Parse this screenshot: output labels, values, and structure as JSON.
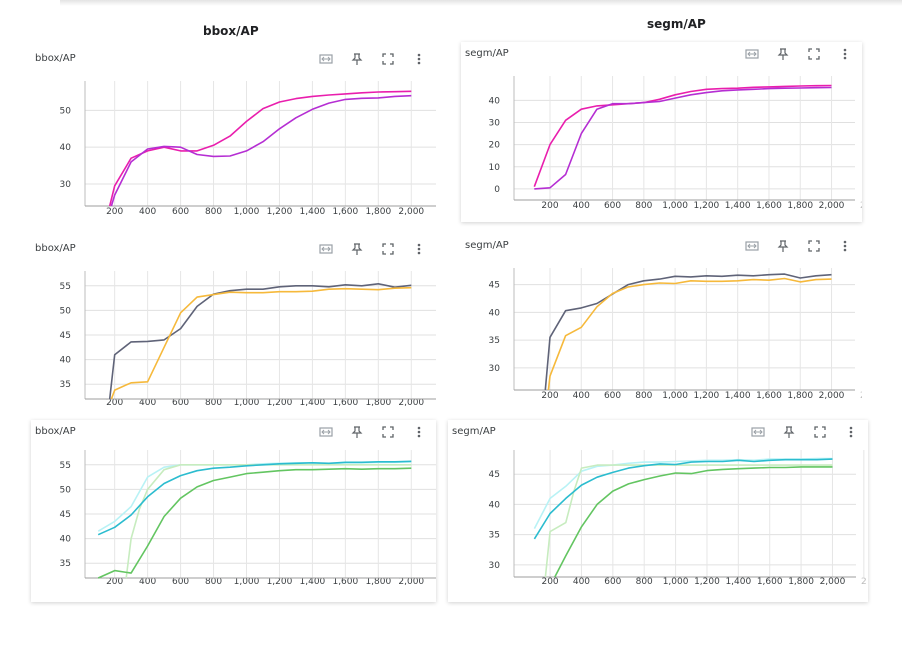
{
  "headings": {
    "left": "bbox/AP",
    "right": "segm/AP"
  },
  "toolbar_icons": [
    "fit-domain-icon",
    "pin-icon",
    "fullscreen-icon",
    "more-vert-icon"
  ],
  "chart_data": [
    {
      "type": "line",
      "title": "bbox/AP",
      "grid": true,
      "x_ticks": [
        "200",
        "400",
        "600",
        "800",
        "1,000",
        "1,200",
        "1,400",
        "1,600",
        "1,800",
        "2,000",
        "2"
      ],
      "y_ticks": [
        30,
        40,
        50
      ],
      "ylim": [
        24,
        58
      ],
      "xlim": [
        20,
        2150
      ],
      "series": [
        {
          "color": "#e91ead",
          "x": [
            170,
            200,
            300,
            400,
            500,
            600,
            700,
            800,
            900,
            1000,
            1100,
            1200,
            1300,
            1400,
            1500,
            1600,
            1700,
            1800,
            1900,
            2000
          ],
          "y": [
            24,
            29.5,
            37,
            39,
            40,
            39,
            39,
            40.5,
            43,
            47,
            50.5,
            52.3,
            53.2,
            53.8,
            54.2,
            54.5,
            54.8,
            55,
            55.1,
            55.2
          ]
        },
        {
          "color": "#b52ed3",
          "x": [
            180,
            200,
            300,
            400,
            500,
            600,
            700,
            800,
            900,
            1000,
            1100,
            1200,
            1300,
            1400,
            1500,
            1600,
            1700,
            1800,
            1900,
            2000
          ],
          "y": [
            24,
            27,
            36,
            39.5,
            40.2,
            40,
            38,
            37.5,
            37.6,
            39,
            41.5,
            45,
            48,
            50.3,
            52,
            53,
            53.3,
            53.4,
            53.8,
            54
          ]
        }
      ]
    },
    {
      "type": "line",
      "title": "segm/AP",
      "grid": true,
      "x_ticks": [
        "200",
        "400",
        "600",
        "800",
        "1,000",
        "1,200",
        "1,400",
        "1,600",
        "1,800",
        "2,000",
        "2"
      ],
      "y_ticks": [
        0,
        10,
        20,
        30,
        40
      ],
      "ylim": [
        -5,
        51
      ],
      "xlim": [
        -30,
        2150
      ],
      "series": [
        {
          "color": "#e91ead",
          "x": [
            100,
            200,
            300,
            400,
            500,
            600,
            700,
            800,
            900,
            1000,
            1100,
            1200,
            1300,
            1400,
            1500,
            1600,
            1700,
            1800,
            1900,
            2000
          ],
          "y": [
            1,
            20,
            31,
            36,
            37.5,
            38,
            38.5,
            39,
            40.5,
            42.5,
            44,
            45,
            45.3,
            45.5,
            45.9,
            46.1,
            46.3,
            46.5,
            46.6,
            46.7
          ]
        },
        {
          "color": "#b52ed3",
          "x": [
            100,
            200,
            300,
            400,
            500,
            600,
            700,
            800,
            900,
            1000,
            1100,
            1200,
            1300,
            1400,
            1500,
            1600,
            1700,
            1800,
            1900,
            2000
          ],
          "y": [
            0,
            0.5,
            6.5,
            25,
            36,
            38.5,
            38.5,
            39,
            39.5,
            41,
            42.5,
            43.5,
            44.3,
            44.7,
            45,
            45.3,
            45.5,
            45.6,
            45.7,
            45.8
          ]
        }
      ]
    },
    {
      "type": "line",
      "title": "bbox/AP",
      "grid": true,
      "x_ticks": [
        "200",
        "400",
        "600",
        "800",
        "1,000",
        "1,200",
        "1,400",
        "1,600",
        "1,800",
        "2,000",
        "2"
      ],
      "y_ticks": [
        35,
        40,
        45,
        50,
        55
      ],
      "ylim": [
        32,
        58
      ],
      "xlim": [
        20,
        2150
      ],
      "series": [
        {
          "color": "#5f6378",
          "x": [
            170,
            200,
            300,
            400,
            500,
            600,
            700,
            800,
            900,
            1000,
            1100,
            1200,
            1300,
            1400,
            1500,
            1600,
            1700,
            1800,
            1900,
            2000
          ],
          "y": [
            32,
            41,
            43.6,
            43.7,
            44,
            46.3,
            50.8,
            53.3,
            54,
            54.3,
            54.3,
            54.8,
            55,
            55,
            54.8,
            55.2,
            55,
            55.4,
            54.7,
            55.1
          ]
        },
        {
          "color": "#f6b93b",
          "x": [
            180,
            200,
            300,
            400,
            500,
            600,
            700,
            800,
            900,
            1000,
            1100,
            1200,
            1300,
            1400,
            1500,
            1600,
            1700,
            1800,
            1900,
            2000
          ],
          "y": [
            32,
            33.8,
            35.3,
            35.5,
            42.5,
            49.5,
            52.7,
            53.2,
            53.7,
            53.6,
            53.6,
            53.8,
            53.8,
            53.9,
            54.3,
            54.4,
            54.3,
            54.2,
            54.5,
            54.6
          ]
        }
      ]
    },
    {
      "type": "line",
      "title": "segm/AP",
      "grid": true,
      "x_ticks": [
        "200",
        "400",
        "600",
        "800",
        "1,000",
        "1,200",
        "1,400",
        "1,600",
        "1,800",
        "2,000",
        "2"
      ],
      "y_ticks": [
        30,
        35,
        40,
        45
      ],
      "ylim": [
        26,
        48
      ],
      "xlim": [
        -30,
        2150
      ],
      "series": [
        {
          "color": "#5f6378",
          "x": [
            170,
            200,
            300,
            400,
            500,
            600,
            700,
            800,
            900,
            1000,
            1100,
            1200,
            1300,
            1400,
            1500,
            1600,
            1700,
            1800,
            1900,
            2000
          ],
          "y": [
            26,
            35.5,
            40.3,
            40.8,
            41.6,
            43.3,
            45,
            45.7,
            46,
            46.5,
            46.4,
            46.6,
            46.5,
            46.7,
            46.6,
            46.8,
            46.9,
            46.2,
            46.6,
            46.8
          ]
        },
        {
          "color": "#f6b93b",
          "x": [
            190,
            200,
            300,
            400,
            500,
            600,
            700,
            800,
            900,
            1000,
            1100,
            1200,
            1300,
            1400,
            1500,
            1600,
            1700,
            1800,
            1900,
            2000
          ],
          "y": [
            26,
            28.5,
            35.8,
            37.3,
            41,
            43.4,
            44.6,
            45,
            45.3,
            45.2,
            45.7,
            45.6,
            45.6,
            45.7,
            45.9,
            45.8,
            46.1,
            45.5,
            45.9,
            46
          ]
        }
      ]
    },
    {
      "type": "line",
      "title": "bbox/AP",
      "grid": true,
      "x_ticks": [
        "200",
        "400",
        "600",
        "800",
        "1,000",
        "1,200",
        "1,400",
        "1,600",
        "1,800",
        "2,000",
        "2"
      ],
      "y_ticks": [
        35,
        40,
        45,
        50,
        55
      ],
      "ylim": [
        32,
        58
      ],
      "xlim": [
        20,
        2150
      ],
      "series": [
        {
          "color": "#b8f2f5",
          "x": [
            100,
            200,
            300,
            400,
            500,
            600,
            700,
            800,
            900,
            1000,
            1100,
            1200,
            1300,
            1400,
            1500,
            1600,
            1700,
            1800,
            1900,
            2000
          ],
          "y": [
            41.5,
            43.5,
            46.5,
            52.5,
            54.5,
            55,
            55,
            55,
            55,
            55,
            55.2,
            55.3,
            55.4,
            55.4,
            55.2,
            55.4,
            55.4,
            55.5,
            55.5,
            55.6
          ]
        },
        {
          "color": "#c7ecbf",
          "x": [
            270,
            300,
            350,
            400,
            500,
            600,
            700,
            800,
            900,
            1000,
            1100,
            1200,
            1300,
            1400,
            1500,
            1600,
            1700,
            1800,
            1900,
            2000
          ],
          "y": [
            32,
            40,
            46,
            50,
            54,
            55,
            55,
            55,
            55,
            55,
            55,
            55,
            55,
            55,
            55,
            55,
            55,
            55,
            55,
            55
          ]
        },
        {
          "color": "#2bbccf",
          "x": [
            100,
            200,
            300,
            400,
            500,
            600,
            700,
            800,
            900,
            1000,
            1100,
            1200,
            1300,
            1400,
            1500,
            1600,
            1700,
            1800,
            1900,
            2000
          ],
          "y": [
            40.8,
            42.3,
            44.8,
            48.5,
            51.2,
            52.8,
            53.8,
            54.3,
            54.5,
            54.8,
            55,
            55.2,
            55.3,
            55.4,
            55.3,
            55.5,
            55.5,
            55.6,
            55.6,
            55.7
          ]
        },
        {
          "color": "#63c561",
          "x": [
            100,
            200,
            300,
            400,
            500,
            600,
            700,
            800,
            900,
            1000,
            1100,
            1200,
            1300,
            1400,
            1500,
            1600,
            1700,
            1800,
            1900,
            2000
          ],
          "y": [
            32,
            33.5,
            33,
            38.5,
            44.5,
            48.2,
            50.5,
            51.8,
            52.5,
            53.2,
            53.5,
            53.8,
            54,
            54,
            54.1,
            54.2,
            54.1,
            54.2,
            54.2,
            54.3
          ]
        }
      ]
    },
    {
      "type": "line",
      "title": "segm/AP",
      "grid": true,
      "x_ticks": [
        "200",
        "400",
        "600",
        "800",
        "1,000",
        "1,200",
        "1,400",
        "1,600",
        "1,800",
        "2,000",
        "2"
      ],
      "y_ticks": [
        30,
        35,
        40,
        45
      ],
      "ylim": [
        28,
        49
      ],
      "xlim": [
        -30,
        2150
      ],
      "series": [
        {
          "color": "#b8f2f5",
          "x": [
            100,
            200,
            300,
            400,
            500,
            600,
            700,
            800,
            900,
            1000,
            1100,
            1200,
            1300,
            1400,
            1500,
            1600,
            1700,
            1800,
            1900,
            2000
          ],
          "y": [
            36,
            41,
            43,
            45.5,
            46.3,
            46.5,
            46.8,
            47,
            47,
            47.1,
            47.2,
            47.3,
            47.3,
            47.4,
            47.3,
            47.5,
            47.5,
            47.5,
            47.6,
            47.6
          ]
        },
        {
          "color": "#c7ecbf",
          "x": [
            170,
            200,
            300,
            350,
            400,
            500,
            600,
            700,
            800,
            900,
            1000,
            1100,
            1200,
            1300,
            1400,
            1500,
            1600,
            1700,
            1800,
            1900,
            2000
          ],
          "y": [
            28,
            35.5,
            37,
            42,
            46,
            46.5,
            46.5,
            46.5,
            46.5,
            46.5,
            46.5,
            46.5,
            46.5,
            46.5,
            46.5,
            46.5,
            46.5,
            46.5,
            46.5,
            46.5,
            46.5
          ]
        },
        {
          "color": "#2bbccf",
          "x": [
            100,
            200,
            300,
            400,
            500,
            600,
            700,
            800,
            900,
            1000,
            1100,
            1200,
            1300,
            1400,
            1500,
            1600,
            1700,
            1800,
            1900,
            2000
          ],
          "y": [
            34.3,
            38.5,
            41,
            43.2,
            44.5,
            45.3,
            46,
            46.4,
            46.7,
            46.6,
            47,
            47.1,
            47.1,
            47.3,
            47.1,
            47.3,
            47.4,
            47.4,
            47.4,
            47.5
          ]
        },
        {
          "color": "#63c561",
          "x": [
            230,
            300,
            400,
            500,
            600,
            700,
            800,
            900,
            1000,
            1100,
            1200,
            1300,
            1400,
            1500,
            1600,
            1700,
            1800,
            1900,
            2000
          ],
          "y": [
            28,
            31.5,
            36.3,
            40,
            42.2,
            43.4,
            44.1,
            44.7,
            45.2,
            45.1,
            45.6,
            45.8,
            45.9,
            46,
            46.1,
            46.1,
            46.2,
            46.2,
            46.2
          ]
        }
      ]
    }
  ]
}
